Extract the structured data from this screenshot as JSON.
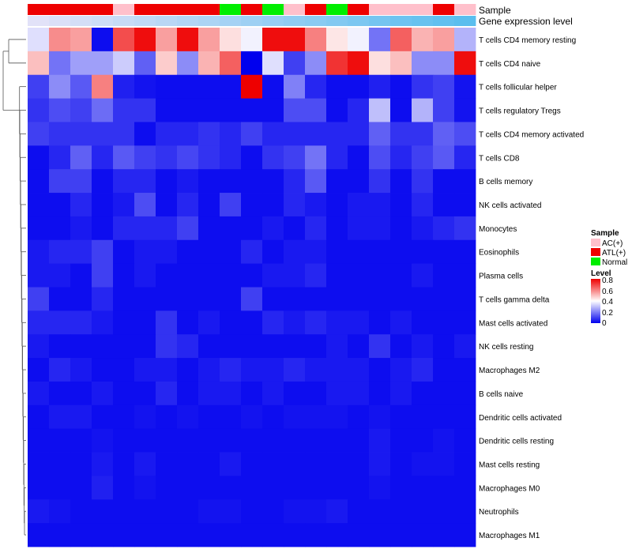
{
  "chart_data": {
    "type": "heatmap",
    "title": "",
    "annotation_labels": [
      "Sample",
      "Gene expression level"
    ],
    "sample_legend": {
      "title": "Sample",
      "entries": [
        {
          "name": "AC(+)",
          "color": "#FFC0CB"
        },
        {
          "name": "ATL(+)",
          "color": "#EE0000"
        },
        {
          "name": "Normal",
          "color": "#00EE00"
        }
      ]
    },
    "level_legend": {
      "title": "Level",
      "ticks": [
        "0.8",
        "0.6",
        "0.4",
        "0.2",
        "0"
      ],
      "range": [
        0,
        0.8
      ],
      "colors": [
        "#0000EE",
        "#FFFFFF",
        "#EE0000"
      ]
    },
    "samples": [
      "ATL(+)",
      "ATL(+)",
      "ATL(+)",
      "ATL(+)",
      "AC(+)",
      "ATL(+)",
      "ATL(+)",
      "ATL(+)",
      "ATL(+)",
      "Normal",
      "ATL(+)",
      "Normal",
      "AC(+)",
      "ATL(+)",
      "Normal",
      "ATL(+)",
      "AC(+)",
      "AC(+)",
      "AC(+)",
      "ATL(+)",
      "AC(+)"
    ],
    "gene_expression_level": [
      0.98,
      0.96,
      0.94,
      0.92,
      0.9,
      0.88,
      0.86,
      0.84,
      0.82,
      0.8,
      0.78,
      0.76,
      0.74,
      0.72,
      0.7,
      0.68,
      0.66,
      0.64,
      0.62,
      0.6,
      0.58
    ],
    "rows": [
      "T cells CD4 memory resting",
      "T cells CD4 naive",
      "T cells follicular helper",
      "T cells regulatory  Tregs",
      "T cells CD4 memory activated",
      "T cells CD8",
      "B cells memory",
      "NK cells activated",
      "Monocytes",
      "Eosinophils",
      "Plasma cells",
      "T cells gamma delta",
      "Mast cells activated",
      "NK cells resting",
      "Macrophages M2",
      "B cells naive",
      "Dendritic cells activated",
      "Dendritic cells resting",
      "Mast cells resting",
      "Macrophages M0",
      "Neutrophils",
      "Macrophages M1"
    ],
    "values": [
      [
        0.35,
        0.58,
        0.55,
        0.02,
        0.68,
        0.78,
        0.55,
        0.78,
        0.55,
        0.45,
        0.38,
        0.78,
        0.78,
        0.6,
        0.44,
        0.38,
        0.18,
        0.65,
        0.52,
        0.55,
        0.28
      ],
      [
        0.5,
        0.18,
        0.25,
        0.25,
        0.32,
        0.15,
        0.48,
        0.22,
        0.52,
        0.65,
        0.0,
        0.35,
        0.1,
        0.22,
        0.72,
        0.78,
        0.45,
        0.5,
        0.22,
        0.22,
        0.78
      ],
      [
        0.1,
        0.22,
        0.14,
        0.6,
        0.05,
        0.03,
        0.02,
        0.02,
        0.02,
        0.02,
        0.8,
        0.02,
        0.2,
        0.06,
        0.02,
        0.02,
        0.05,
        0.02,
        0.08,
        0.1,
        0.03
      ],
      [
        0.08,
        0.12,
        0.1,
        0.17,
        0.08,
        0.08,
        0.02,
        0.02,
        0.02,
        0.02,
        0.02,
        0.02,
        0.12,
        0.12,
        0.02,
        0.06,
        0.3,
        0.02,
        0.28,
        0.1,
        0.03
      ],
      [
        0.1,
        0.08,
        0.08,
        0.08,
        0.08,
        0.02,
        0.06,
        0.06,
        0.08,
        0.06,
        0.1,
        0.06,
        0.06,
        0.06,
        0.06,
        0.06,
        0.15,
        0.08,
        0.08,
        0.15,
        0.12
      ],
      [
        0.02,
        0.06,
        0.15,
        0.06,
        0.14,
        0.1,
        0.08,
        0.11,
        0.08,
        0.06,
        0.02,
        0.08,
        0.1,
        0.18,
        0.06,
        0.02,
        0.12,
        0.06,
        0.1,
        0.14,
        0.06
      ],
      [
        0.02,
        0.1,
        0.1,
        0.02,
        0.06,
        0.06,
        0.02,
        0.04,
        0.02,
        0.02,
        0.02,
        0.02,
        0.06,
        0.14,
        0.02,
        0.02,
        0.08,
        0.02,
        0.08,
        0.02,
        0.02
      ],
      [
        0.02,
        0.02,
        0.06,
        0.02,
        0.04,
        0.12,
        0.02,
        0.06,
        0.02,
        0.1,
        0.02,
        0.02,
        0.06,
        0.04,
        0.02,
        0.04,
        0.04,
        0.02,
        0.06,
        0.02,
        0.02
      ],
      [
        0.02,
        0.02,
        0.04,
        0.02,
        0.06,
        0.06,
        0.06,
        0.1,
        0.02,
        0.02,
        0.02,
        0.04,
        0.02,
        0.06,
        0.02,
        0.04,
        0.04,
        0.02,
        0.04,
        0.06,
        0.08
      ],
      [
        0.04,
        0.06,
        0.06,
        0.1,
        0.02,
        0.04,
        0.04,
        0.02,
        0.02,
        0.02,
        0.06,
        0.02,
        0.04,
        0.04,
        0.02,
        0.02,
        0.02,
        0.02,
        0.02,
        0.02,
        0.02
      ],
      [
        0.04,
        0.04,
        0.02,
        0.1,
        0.02,
        0.04,
        0.02,
        0.02,
        0.02,
        0.02,
        0.02,
        0.04,
        0.04,
        0.06,
        0.02,
        0.02,
        0.02,
        0.02,
        0.04,
        0.02,
        0.02
      ],
      [
        0.1,
        0.02,
        0.02,
        0.06,
        0.02,
        0.02,
        0.02,
        0.02,
        0.02,
        0.02,
        0.1,
        0.02,
        0.02,
        0.02,
        0.02,
        0.02,
        0.02,
        0.02,
        0.02,
        0.02,
        0.02
      ],
      [
        0.06,
        0.06,
        0.06,
        0.04,
        0.02,
        0.02,
        0.08,
        0.02,
        0.04,
        0.02,
        0.02,
        0.06,
        0.04,
        0.06,
        0.04,
        0.04,
        0.02,
        0.04,
        0.02,
        0.02,
        0.02
      ],
      [
        0.04,
        0.02,
        0.02,
        0.02,
        0.02,
        0.02,
        0.08,
        0.06,
        0.02,
        0.02,
        0.02,
        0.02,
        0.02,
        0.02,
        0.04,
        0.02,
        0.08,
        0.02,
        0.04,
        0.02,
        0.04
      ],
      [
        0.02,
        0.06,
        0.04,
        0.02,
        0.02,
        0.04,
        0.04,
        0.02,
        0.04,
        0.06,
        0.04,
        0.04,
        0.06,
        0.04,
        0.04,
        0.04,
        0.02,
        0.04,
        0.06,
        0.02,
        0.02
      ],
      [
        0.04,
        0.02,
        0.02,
        0.04,
        0.02,
        0.02,
        0.06,
        0.02,
        0.04,
        0.04,
        0.02,
        0.04,
        0.02,
        0.02,
        0.04,
        0.04,
        0.02,
        0.04,
        0.02,
        0.02,
        0.02
      ],
      [
        0.02,
        0.04,
        0.04,
        0.02,
        0.02,
        0.03,
        0.02,
        0.03,
        0.02,
        0.02,
        0.03,
        0.02,
        0.03,
        0.03,
        0.03,
        0.02,
        0.03,
        0.02,
        0.02,
        0.02,
        0.02
      ],
      [
        0.02,
        0.02,
        0.02,
        0.03,
        0.02,
        0.02,
        0.02,
        0.02,
        0.02,
        0.02,
        0.02,
        0.02,
        0.02,
        0.02,
        0.02,
        0.02,
        0.04,
        0.02,
        0.02,
        0.03,
        0.02
      ],
      [
        0.02,
        0.02,
        0.02,
        0.04,
        0.02,
        0.04,
        0.02,
        0.02,
        0.02,
        0.04,
        0.02,
        0.02,
        0.02,
        0.02,
        0.02,
        0.02,
        0.04,
        0.02,
        0.03,
        0.03,
        0.02
      ],
      [
        0.02,
        0.02,
        0.02,
        0.05,
        0.02,
        0.03,
        0.02,
        0.02,
        0.02,
        0.02,
        0.02,
        0.02,
        0.02,
        0.02,
        0.02,
        0.02,
        0.03,
        0.02,
        0.02,
        0.02,
        0.02
      ],
      [
        0.04,
        0.03,
        0.02,
        0.02,
        0.02,
        0.02,
        0.02,
        0.02,
        0.03,
        0.03,
        0.02,
        0.02,
        0.03,
        0.03,
        0.04,
        0.02,
        0.02,
        0.02,
        0.02,
        0.02,
        0.02
      ],
      [
        0.02,
        0.02,
        0.02,
        0.02,
        0.02,
        0.02,
        0.02,
        0.02,
        0.02,
        0.02,
        0.02,
        0.02,
        0.02,
        0.02,
        0.02,
        0.02,
        0.02,
        0.02,
        0.02,
        0.02,
        0.02
      ]
    ]
  }
}
